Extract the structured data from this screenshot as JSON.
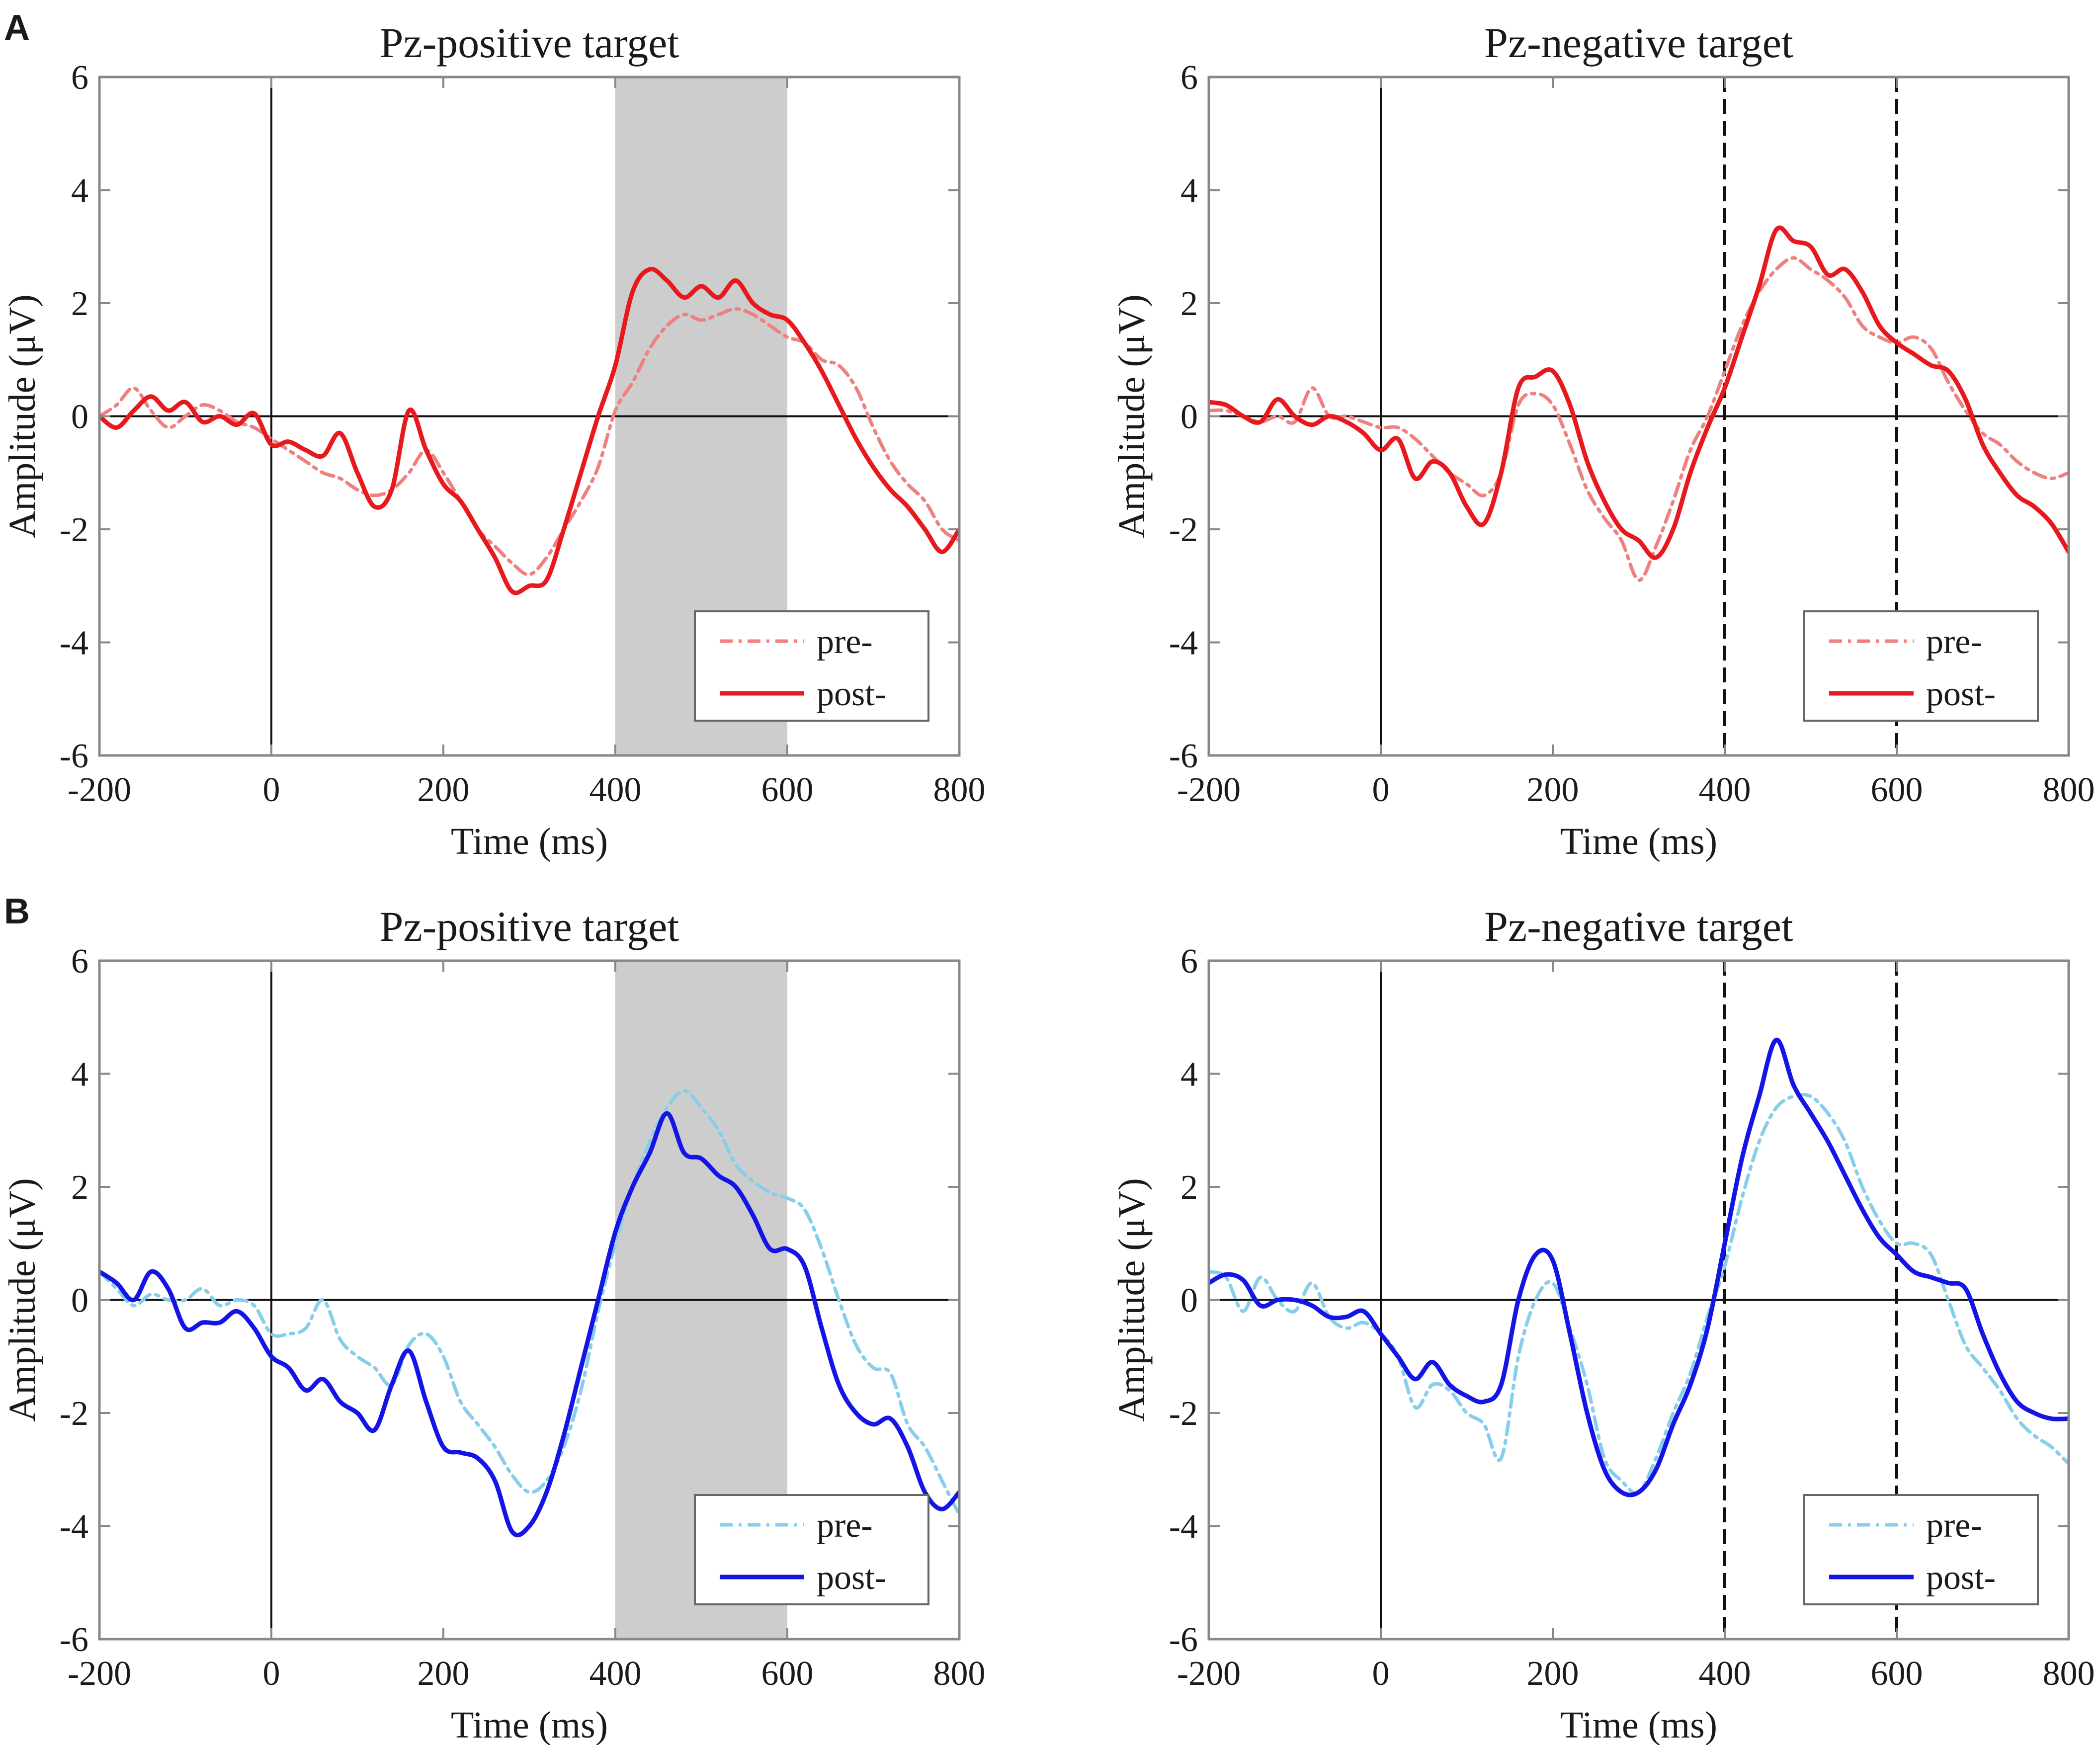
{
  "figure": {
    "panel_labels": [
      "A",
      "B"
    ]
  },
  "chart_data": [
    {
      "type": "line",
      "panel": "A",
      "title": "Pz-positive target",
      "xlabel": "Time (ms)",
      "ylabel": "Amplitude (μV)",
      "xlim": [
        -200,
        800
      ],
      "ylim": [
        -6,
        6
      ],
      "xticks": [
        -200,
        0,
        200,
        400,
        600,
        800
      ],
      "yticks": [
        -6,
        -4,
        -2,
        0,
        2,
        4,
        6
      ],
      "highlight_window": [
        400,
        600
      ],
      "dashed_markers": [],
      "legend": [
        "pre-",
        "post-"
      ],
      "legend_position": "bottom-right",
      "colors": {
        "pre": "#f08080",
        "post": "#e8191c"
      },
      "series": [
        {
          "name": "pre-",
          "style": "dash-dot",
          "x": [
            -200,
            -180,
            -160,
            -140,
            -120,
            -100,
            -80,
            -60,
            -40,
            -20,
            0,
            20,
            40,
            60,
            80,
            100,
            120,
            140,
            160,
            180,
            200,
            220,
            240,
            260,
            280,
            300,
            320,
            340,
            360,
            380,
            400,
            420,
            440,
            460,
            480,
            500,
            520,
            540,
            560,
            580,
            600,
            620,
            640,
            660,
            680,
            700,
            720,
            740,
            760,
            780,
            800
          ],
          "y": [
            0,
            0.2,
            0.5,
            0.1,
            -0.2,
            0,
            0.2,
            0.1,
            -0.1,
            -0.2,
            -0.4,
            -0.6,
            -0.8,
            -1.0,
            -1.1,
            -1.3,
            -1.4,
            -1.3,
            -1.0,
            -0.6,
            -1.0,
            -1.5,
            -2.0,
            -2.3,
            -2.6,
            -2.8,
            -2.5,
            -2.0,
            -1.5,
            -0.9,
            0.1,
            0.6,
            1.2,
            1.6,
            1.8,
            1.7,
            1.8,
            1.9,
            1.8,
            1.6,
            1.4,
            1.3,
            1.0,
            0.9,
            0.5,
            -0.2,
            -0.8,
            -1.2,
            -1.5,
            -2.0,
            -2.2
          ]
        },
        {
          "name": "post-",
          "style": "solid",
          "x": [
            -200,
            -180,
            -160,
            -140,
            -120,
            -100,
            -80,
            -60,
            -40,
            -20,
            0,
            20,
            40,
            60,
            80,
            100,
            120,
            140,
            160,
            180,
            200,
            220,
            240,
            260,
            280,
            300,
            320,
            340,
            360,
            380,
            400,
            420,
            440,
            460,
            480,
            500,
            520,
            540,
            560,
            580,
            600,
            620,
            640,
            660,
            680,
            700,
            720,
            740,
            760,
            780,
            800
          ],
          "y": [
            0,
            -0.2,
            0.1,
            0.35,
            0.1,
            0.25,
            -0.1,
            0,
            -0.15,
            0.05,
            -0.5,
            -0.45,
            -0.6,
            -0.7,
            -0.3,
            -1.0,
            -1.6,
            -1.3,
            0.1,
            -0.6,
            -1.2,
            -1.5,
            -2.0,
            -2.5,
            -3.1,
            -3.0,
            -2.9,
            -2.0,
            -1.0,
            0.0,
            0.9,
            2.2,
            2.6,
            2.4,
            2.1,
            2.3,
            2.1,
            2.4,
            2.0,
            1.8,
            1.7,
            1.3,
            0.8,
            0.2,
            -0.4,
            -0.9,
            -1.3,
            -1.6,
            -2.0,
            -2.4,
            -2.0
          ]
        }
      ]
    },
    {
      "type": "line",
      "panel": "A",
      "title": "Pz-negative target",
      "xlabel": "Time (ms)",
      "ylabel": "Amplitude (μV)",
      "xlim": [
        -200,
        800
      ],
      "ylim": [
        -6,
        6
      ],
      "xticks": [
        -200,
        0,
        200,
        400,
        600,
        800
      ],
      "yticks": [
        -6,
        -4,
        -2,
        0,
        2,
        4,
        6
      ],
      "highlight_window": null,
      "dashed_markers": [
        400,
        600
      ],
      "legend": [
        "pre-",
        "post-"
      ],
      "legend_position": "bottom-right",
      "colors": {
        "pre": "#f08080",
        "post": "#e8191c"
      },
      "series": [
        {
          "name": "pre-",
          "style": "dash-dot",
          "x": [
            -200,
            -180,
            -160,
            -140,
            -120,
            -100,
            -80,
            -60,
            -40,
            -20,
            0,
            20,
            40,
            60,
            80,
            100,
            120,
            140,
            160,
            180,
            200,
            220,
            240,
            260,
            280,
            300,
            320,
            340,
            360,
            380,
            400,
            420,
            440,
            460,
            480,
            500,
            520,
            540,
            560,
            580,
            600,
            620,
            640,
            660,
            680,
            700,
            720,
            740,
            760,
            780,
            800
          ],
          "y": [
            0.1,
            0.1,
            0.0,
            -0.1,
            0.0,
            -0.1,
            0.5,
            0.0,
            0.0,
            -0.1,
            -0.2,
            -0.2,
            -0.4,
            -0.7,
            -1.0,
            -1.2,
            -1.4,
            -1.0,
            0.2,
            0.4,
            0.2,
            -0.5,
            -1.3,
            -1.8,
            -2.2,
            -2.9,
            -2.3,
            -1.5,
            -0.6,
            0.0,
            0.8,
            1.6,
            2.2,
            2.6,
            2.8,
            2.6,
            2.4,
            2.1,
            1.6,
            1.4,
            1.3,
            1.4,
            1.2,
            0.6,
            0.1,
            -0.3,
            -0.5,
            -0.8,
            -1.0,
            -1.1,
            -1.0
          ]
        },
        {
          "name": "post-",
          "style": "solid",
          "x": [
            -200,
            -180,
            -160,
            -140,
            -120,
            -100,
            -80,
            -60,
            -40,
            -20,
            0,
            20,
            40,
            60,
            80,
            100,
            120,
            140,
            160,
            180,
            200,
            220,
            240,
            260,
            280,
            300,
            320,
            340,
            360,
            380,
            400,
            420,
            440,
            460,
            480,
            500,
            520,
            540,
            560,
            580,
            600,
            620,
            640,
            660,
            680,
            700,
            720,
            740,
            760,
            780,
            800
          ],
          "y": [
            0.25,
            0.2,
            0.0,
            -0.1,
            0.3,
            0.0,
            -0.15,
            0.0,
            -0.1,
            -0.3,
            -0.6,
            -0.4,
            -1.1,
            -0.8,
            -1.0,
            -1.6,
            -1.9,
            -1.0,
            0.5,
            0.7,
            0.8,
            0.2,
            -0.8,
            -1.5,
            -2.0,
            -2.2,
            -2.5,
            -2.0,
            -1.0,
            -0.2,
            0.5,
            1.4,
            2.3,
            3.3,
            3.1,
            3.0,
            2.5,
            2.6,
            2.2,
            1.6,
            1.3,
            1.1,
            0.9,
            0.8,
            0.3,
            -0.5,
            -1.0,
            -1.4,
            -1.6,
            -1.9,
            -2.4
          ]
        }
      ]
    },
    {
      "type": "line",
      "panel": "B",
      "title": "Pz-positive target",
      "xlabel": "Time (ms)",
      "ylabel": "Amplitude (μV)",
      "xlim": [
        -200,
        800
      ],
      "ylim": [
        -6,
        6
      ],
      "xticks": [
        -200,
        0,
        200,
        400,
        600,
        800
      ],
      "yticks": [
        -6,
        -4,
        -2,
        0,
        2,
        4,
        6
      ],
      "highlight_window": [
        400,
        600
      ],
      "dashed_markers": [],
      "legend": [
        "pre-",
        "post-"
      ],
      "legend_position": "bottom-right",
      "colors": {
        "pre": "#87ceeb",
        "post": "#1414e6"
      },
      "series": [
        {
          "name": "pre-",
          "style": "dash-dot",
          "x": [
            -200,
            -180,
            -160,
            -140,
            -120,
            -100,
            -80,
            -60,
            -40,
            -20,
            0,
            20,
            40,
            60,
            80,
            100,
            120,
            140,
            160,
            180,
            200,
            220,
            240,
            260,
            280,
            300,
            320,
            340,
            360,
            380,
            400,
            420,
            440,
            460,
            480,
            500,
            520,
            540,
            560,
            580,
            600,
            620,
            640,
            660,
            680,
            700,
            720,
            740,
            760,
            780,
            800
          ],
          "y": [
            0.5,
            0.2,
            -0.1,
            0.1,
            0.0,
            0.0,
            0.2,
            -0.1,
            0.0,
            -0.1,
            -0.6,
            -0.6,
            -0.5,
            0.0,
            -0.7,
            -1.0,
            -1.2,
            -1.5,
            -0.8,
            -0.6,
            -1.0,
            -1.8,
            -2.2,
            -2.6,
            -3.1,
            -3.4,
            -3.2,
            -2.6,
            -1.6,
            -0.2,
            1.0,
            2.0,
            2.8,
            3.4,
            3.7,
            3.4,
            3.0,
            2.4,
            2.1,
            1.9,
            1.8,
            1.6,
            0.9,
            0.0,
            -0.8,
            -1.2,
            -1.3,
            -2.2,
            -2.6,
            -3.2,
            -3.8
          ]
        },
        {
          "name": "post-",
          "style": "solid",
          "x": [
            -200,
            -180,
            -160,
            -140,
            -120,
            -100,
            -80,
            -60,
            -40,
            -20,
            0,
            20,
            40,
            60,
            80,
            100,
            120,
            140,
            160,
            180,
            200,
            220,
            240,
            260,
            280,
            300,
            320,
            340,
            360,
            380,
            400,
            420,
            440,
            460,
            480,
            500,
            520,
            540,
            560,
            580,
            600,
            620,
            640,
            660,
            680,
            700,
            720,
            740,
            760,
            780,
            800
          ],
          "y": [
            0.5,
            0.3,
            0.0,
            0.5,
            0.2,
            -0.5,
            -0.4,
            -0.4,
            -0.2,
            -0.5,
            -1.0,
            -1.2,
            -1.6,
            -1.4,
            -1.8,
            -2.0,
            -2.3,
            -1.5,
            -0.9,
            -1.8,
            -2.6,
            -2.7,
            -2.8,
            -3.2,
            -4.1,
            -4.0,
            -3.4,
            -2.4,
            -1.2,
            0.0,
            1.2,
            2.0,
            2.6,
            3.3,
            2.6,
            2.5,
            2.2,
            2.0,
            1.5,
            0.9,
            0.9,
            0.6,
            -0.5,
            -1.5,
            -2.0,
            -2.2,
            -2.1,
            -2.6,
            -3.4,
            -3.7,
            -3.4
          ]
        }
      ]
    },
    {
      "type": "line",
      "panel": "B",
      "title": "Pz-negative target",
      "xlabel": "Time (ms)",
      "ylabel": "Amplitude (μV)",
      "xlim": [
        -200,
        800
      ],
      "ylim": [
        -6,
        6
      ],
      "xticks": [
        -200,
        0,
        200,
        400,
        600,
        800
      ],
      "yticks": [
        -6,
        -4,
        -2,
        0,
        2,
        4,
        6
      ],
      "highlight_window": null,
      "dashed_markers": [
        400,
        600
      ],
      "legend": [
        "pre-",
        "post-"
      ],
      "legend_position": "bottom-right",
      "colors": {
        "pre": "#87ceeb",
        "post": "#1414e6"
      },
      "series": [
        {
          "name": "pre-",
          "style": "dash-dot",
          "x": [
            -200,
            -180,
            -160,
            -140,
            -120,
            -100,
            -80,
            -60,
            -40,
            -20,
            0,
            20,
            40,
            60,
            80,
            100,
            120,
            140,
            160,
            180,
            200,
            220,
            240,
            260,
            280,
            300,
            320,
            340,
            360,
            380,
            400,
            420,
            440,
            460,
            480,
            500,
            520,
            540,
            560,
            580,
            600,
            620,
            640,
            660,
            680,
            700,
            720,
            740,
            760,
            780,
            800
          ],
          "y": [
            0.5,
            0.4,
            -0.2,
            0.4,
            0.0,
            -0.2,
            0.3,
            -0.3,
            -0.5,
            -0.4,
            -0.6,
            -1.0,
            -1.9,
            -1.5,
            -1.6,
            -2.0,
            -2.2,
            -2.8,
            -1.0,
            0.0,
            0.3,
            -0.5,
            -1.5,
            -2.8,
            -3.2,
            -3.4,
            -2.8,
            -2.0,
            -1.3,
            -0.3,
            0.6,
            1.8,
            2.8,
            3.4,
            3.6,
            3.6,
            3.3,
            2.8,
            2.0,
            1.4,
            1.0,
            1.0,
            0.8,
            0.0,
            -0.8,
            -1.2,
            -1.6,
            -2.1,
            -2.4,
            -2.6,
            -2.9
          ]
        },
        {
          "name": "post-",
          "style": "solid",
          "x": [
            -200,
            -180,
            -160,
            -140,
            -120,
            -100,
            -80,
            -60,
            -40,
            -20,
            0,
            20,
            40,
            60,
            80,
            100,
            120,
            140,
            160,
            180,
            200,
            220,
            240,
            260,
            280,
            300,
            320,
            340,
            360,
            380,
            400,
            420,
            440,
            460,
            480,
            500,
            520,
            540,
            560,
            580,
            600,
            620,
            640,
            660,
            680,
            700,
            720,
            740,
            760,
            780,
            800
          ],
          "y": [
            0.3,
            0.45,
            0.35,
            -0.1,
            0.0,
            0.0,
            -0.1,
            -0.3,
            -0.3,
            -0.2,
            -0.6,
            -1.0,
            -1.4,
            -1.1,
            -1.5,
            -1.7,
            -1.8,
            -1.5,
            0.0,
            0.8,
            0.7,
            -0.6,
            -2.0,
            -3.0,
            -3.4,
            -3.4,
            -3.0,
            -2.2,
            -1.5,
            -0.5,
            1.0,
            2.5,
            3.6,
            4.6,
            3.8,
            3.3,
            2.8,
            2.2,
            1.6,
            1.1,
            0.8,
            0.5,
            0.4,
            0.3,
            0.2,
            -0.6,
            -1.3,
            -1.8,
            -2.0,
            -2.1,
            -2.1
          ]
        }
      ]
    }
  ]
}
